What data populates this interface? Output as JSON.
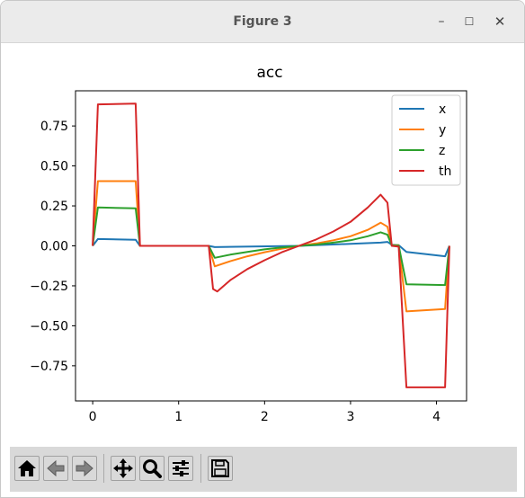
{
  "window": {
    "title": "Figure 3",
    "controls": {
      "minimize": "–",
      "maximize": "☐",
      "close": "✕"
    }
  },
  "chart_data": {
    "type": "line",
    "title": "acc",
    "xlabel": "",
    "ylabel": "",
    "xlim": [
      -0.2,
      4.35
    ],
    "ylim": [
      -0.97,
      0.97
    ],
    "xticks": [
      0,
      1,
      2,
      3,
      4
    ],
    "yticks": [
      0.75,
      0.5,
      0.25,
      0.0,
      -0.25,
      -0.5,
      -0.75
    ],
    "ytick_labels": [
      "0.75",
      "0.50",
      "0.25",
      "0.00",
      "−0.25",
      "−0.50",
      "−0.75"
    ],
    "legend_location": "top-right",
    "grid": false,
    "series": [
      {
        "name": "x",
        "color": "#1f77b4",
        "x": [
          0,
          0.06,
          0.5,
          0.55,
          1.35,
          1.42,
          2.4,
          3.35,
          3.43,
          3.48,
          3.56,
          3.65,
          4.1,
          4.15
        ],
        "y": [
          0,
          0.043,
          0.038,
          0,
          0,
          -0.008,
          0,
          0.02,
          0.025,
          0.007,
          0.004,
          -0.038,
          -0.065,
          0
        ]
      },
      {
        "name": "y",
        "color": "#ff7f0e",
        "x": [
          0,
          0.06,
          0.5,
          0.55,
          1.35,
          1.42,
          1.6,
          1.8,
          2.0,
          2.2,
          2.4,
          2.6,
          2.8,
          3.0,
          3.2,
          3.35,
          3.43,
          3.48,
          3.56,
          3.65,
          4.1,
          4.15
        ],
        "y": [
          0,
          0.405,
          0.405,
          0,
          0,
          -0.128,
          -0.096,
          -0.065,
          -0.04,
          -0.018,
          0,
          0.015,
          0.035,
          0.06,
          0.1,
          0.145,
          0.12,
          0.005,
          0.004,
          -0.41,
          -0.395,
          0
        ]
      },
      {
        "name": "z",
        "color": "#2ca02c",
        "x": [
          0,
          0.06,
          0.5,
          0.55,
          1.35,
          1.42,
          1.6,
          1.8,
          2.0,
          2.2,
          2.4,
          2.6,
          2.8,
          3.0,
          3.2,
          3.35,
          3.43,
          3.48,
          3.56,
          3.65,
          4.1,
          4.15
        ],
        "y": [
          0,
          0.24,
          0.235,
          0,
          0,
          -0.075,
          -0.055,
          -0.038,
          -0.022,
          -0.01,
          0,
          0.008,
          0.02,
          0.035,
          0.06,
          0.085,
          0.07,
          0.003,
          0.002,
          -0.24,
          -0.245,
          0
        ]
      },
      {
        "name": "th",
        "color": "#d62728",
        "x": [
          0,
          0.06,
          0.5,
          0.55,
          1.35,
          1.4,
          1.45,
          1.6,
          1.8,
          2.0,
          2.2,
          2.4,
          2.6,
          2.8,
          3.0,
          3.2,
          3.35,
          3.43,
          3.48,
          3.56,
          3.65,
          4.1,
          4.15
        ],
        "y": [
          0,
          0.885,
          0.89,
          0,
          0,
          -0.27,
          -0.285,
          -0.215,
          -0.145,
          -0.09,
          -0.04,
          0,
          0.04,
          0.09,
          0.15,
          0.24,
          0.32,
          0.27,
          0,
          -0.005,
          -0.885,
          -0.885,
          0
        ]
      }
    ]
  },
  "toolbar": {
    "buttons": [
      {
        "icon": "home-icon"
      },
      {
        "icon": "back-arrow-icon"
      },
      {
        "icon": "forward-arrow-icon"
      },
      {
        "icon": "pan-move-icon"
      },
      {
        "icon": "zoom-magnifier-icon"
      },
      {
        "icon": "configure-subplots-icon"
      },
      {
        "icon": "save-disk-icon"
      }
    ]
  }
}
